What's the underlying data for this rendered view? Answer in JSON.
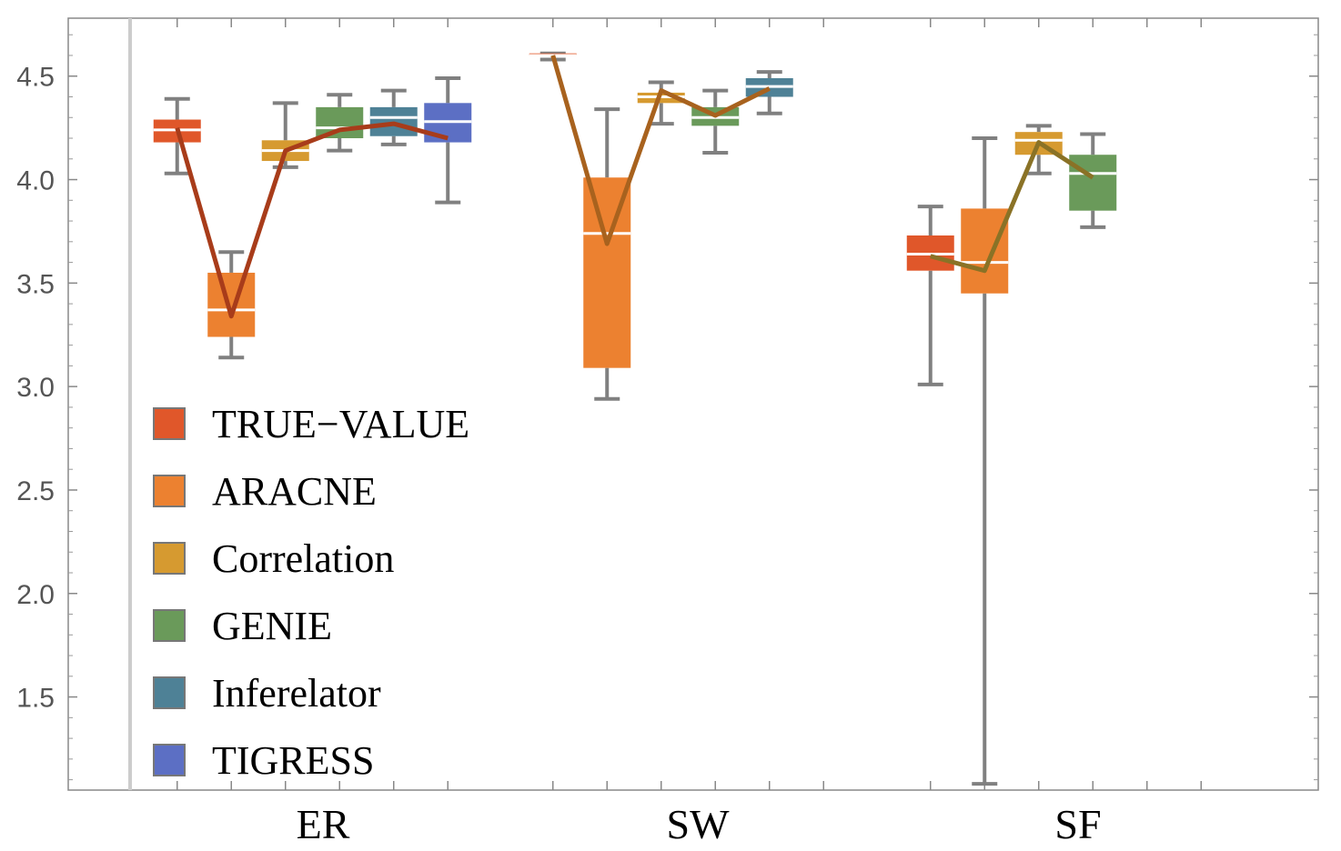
{
  "chart_data": {
    "type": "box",
    "title": "",
    "xlabel": "",
    "ylabel": "",
    "ylim": [
      1.05,
      4.78
    ],
    "y_ticks": [
      "1.5",
      "2.0",
      "2.5",
      "3.0",
      "3.5",
      "4.0",
      "4.5"
    ],
    "categories": [
      "ER",
      "SW",
      "SF"
    ],
    "legend": {
      "position": "bottom-left",
      "entries": [
        {
          "name": "TRUE−VALUE",
          "color": "#E0572A"
        },
        {
          "name": "ARACNE",
          "color": "#EC8130"
        },
        {
          "name": "Correlation",
          "color": "#D69A30"
        },
        {
          "name": "GENIE",
          "color": "#6A9A5A"
        },
        {
          "name": "Inferelator",
          "color": "#4E8196"
        },
        {
          "name": "TIGRESS",
          "color": "#5C6FC4"
        }
      ]
    },
    "series": [
      {
        "name": "TRUE−VALUE",
        "color": "#E0572A",
        "boxes": [
          {
            "category": "ER",
            "min": 4.03,
            "q1": 4.18,
            "median": 4.24,
            "q3": 4.29,
            "max": 4.39
          },
          {
            "category": "SW",
            "min": 4.58,
            "q1": 4.6,
            "median": 4.6,
            "q3": 4.61,
            "max": 4.61
          },
          {
            "category": "SF",
            "min": 3.01,
            "q1": 3.56,
            "median": 3.64,
            "q3": 3.73,
            "max": 3.87
          }
        ]
      },
      {
        "name": "ARACNE",
        "color": "#EC8130",
        "boxes": [
          {
            "category": "ER",
            "min": 3.14,
            "q1": 3.24,
            "median": 3.37,
            "q3": 3.55,
            "max": 3.65
          },
          {
            "category": "SW",
            "min": 2.94,
            "q1": 3.09,
            "median": 3.74,
            "q3": 4.01,
            "max": 4.34
          },
          {
            "category": "SF",
            "min": 1.08,
            "q1": 3.45,
            "median": 3.6,
            "q3": 3.86,
            "max": 4.2
          }
        ]
      },
      {
        "name": "Correlation",
        "color": "#D69A30",
        "boxes": [
          {
            "category": "ER",
            "min": 4.06,
            "q1": 4.09,
            "median": 4.14,
            "q3": 4.19,
            "max": 4.37
          },
          {
            "category": "SW",
            "min": 4.27,
            "q1": 4.37,
            "median": 4.4,
            "q3": 4.42,
            "max": 4.47
          },
          {
            "category": "SF",
            "min": 4.03,
            "q1": 4.12,
            "median": 4.19,
            "q3": 4.23,
            "max": 4.26
          }
        ]
      },
      {
        "name": "GENIE",
        "color": "#6A9A5A",
        "boxes": [
          {
            "category": "ER",
            "min": 4.14,
            "q1": 4.2,
            "median": 4.25,
            "q3": 4.35,
            "max": 4.41
          },
          {
            "category": "SW",
            "min": 4.13,
            "q1": 4.26,
            "median": 4.3,
            "q3": 4.35,
            "max": 4.43
          },
          {
            "category": "SF",
            "min": 3.77,
            "q1": 3.85,
            "median": 4.03,
            "q3": 4.12,
            "max": 4.22
          }
        ]
      },
      {
        "name": "Inferelator",
        "color": "#4E8196",
        "boxes": [
          {
            "category": "ER",
            "min": 4.17,
            "q1": 4.21,
            "median": 4.3,
            "q3": 4.35,
            "max": 4.43
          },
          {
            "category": "SW",
            "min": 4.32,
            "q1": 4.4,
            "median": 4.45,
            "q3": 4.49,
            "max": 4.52
          }
        ]
      },
      {
        "name": "TIGRESS",
        "color": "#5C6FC4",
        "boxes": [
          {
            "category": "ER",
            "min": 3.89,
            "q1": 4.18,
            "median": 4.28,
            "q3": 4.37,
            "max": 4.49
          }
        ]
      }
    ],
    "mean_lines": [
      {
        "category": "ER",
        "color": "#A83C1A",
        "values": [
          4.25,
          3.34,
          4.14,
          4.24,
          4.27,
          4.2
        ]
      },
      {
        "category": "SW",
        "color": "#A8621E",
        "values": [
          4.6,
          3.69,
          4.43,
          4.31,
          4.44
        ]
      },
      {
        "category": "SF",
        "color": "#8A7226",
        "values": [
          3.63,
          3.56,
          4.18,
          4.01
        ]
      }
    ]
  }
}
